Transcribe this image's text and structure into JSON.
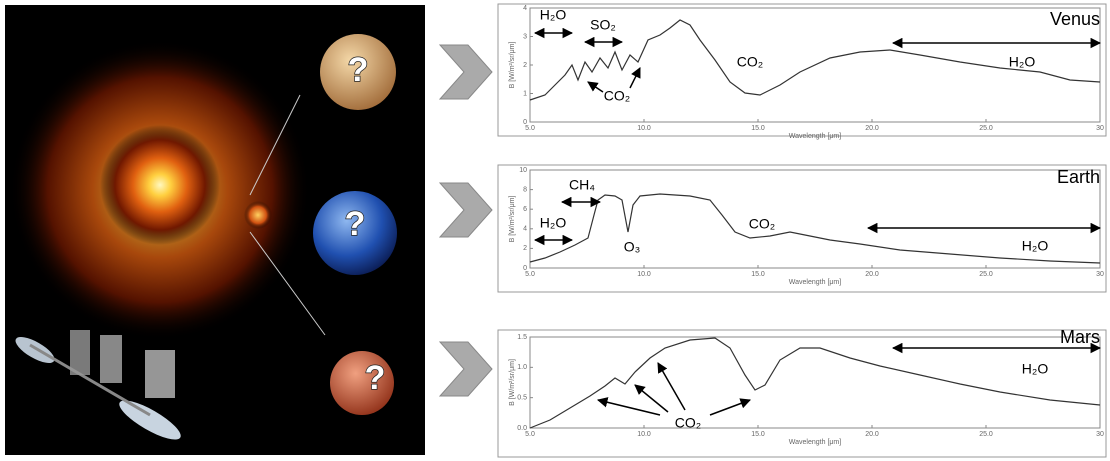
{
  "planets": [
    {
      "label": "?"
    },
    {
      "label": "?"
    },
    {
      "label": "?"
    }
  ],
  "panels": [
    {
      "planet": "Venus",
      "x_axis_label": "Wavelength [μm]",
      "y_axis_label": "B [W/m²/sr/μm]",
      "xticks": [
        "5.0",
        "10.0",
        "15.0",
        "20.0",
        "25.0",
        "30"
      ],
      "yticks": [
        "0",
        "1",
        "2",
        "3",
        "4"
      ],
      "annotations": [
        "H₂O",
        "SO₂",
        "CO₂",
        "CO₂",
        "H₂O"
      ]
    },
    {
      "planet": "Earth",
      "x_axis_label": "Wavelength [μm]",
      "y_axis_label": "B [W/m²/sr/μm]",
      "xticks": [
        "5.0",
        "10.0",
        "15.0",
        "20.0",
        "25.0",
        "30"
      ],
      "yticks": [
        "0",
        "2",
        "4",
        "6",
        "8",
        "10"
      ],
      "annotations": [
        "CH₄",
        "H₂O",
        "O₃",
        "CO₂",
        "H₂O"
      ]
    },
    {
      "planet": "Mars",
      "x_axis_label": "Wavelength [μm]",
      "y_axis_label": "B [W/m²/sr/μm]",
      "xticks": [
        "5.0",
        "10.0",
        "15.0",
        "20.0",
        "25.0",
        "30"
      ],
      "yticks": [
        "0.0",
        "0.5",
        "1.0",
        "1.5"
      ],
      "annotations": [
        "CO₂",
        "H₂O"
      ]
    }
  ]
}
